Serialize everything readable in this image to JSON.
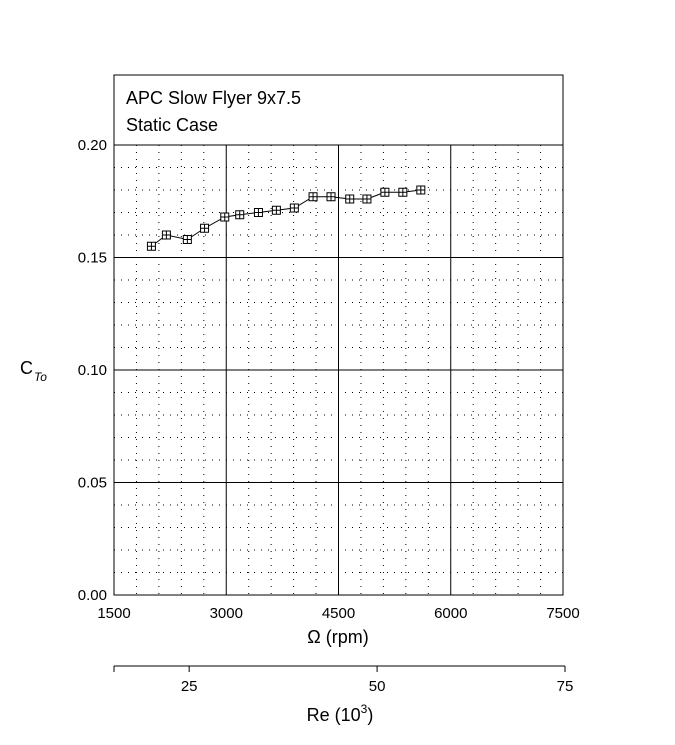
{
  "chart_data": {
    "type": "line",
    "title_lines": [
      "APC Slow Flyer 9x7.5",
      "Static Case"
    ],
    "xlabel": "Ω (rpm)",
    "ylabel_main": "C",
    "ylabel_sub": "To",
    "xlim": [
      1500,
      7500
    ],
    "ylim": [
      0.0,
      0.2
    ],
    "xticks": [
      1500,
      3000,
      4500,
      6000,
      7500
    ],
    "xtick_labels": [
      "1500",
      "3000",
      "4500",
      "6000",
      "7500"
    ],
    "yticks": [
      0.0,
      0.05,
      0.1,
      0.15,
      0.2
    ],
    "ytick_labels": [
      "0.00",
      "0.05",
      "0.10",
      "0.15",
      "0.20"
    ],
    "grid": true,
    "marker": "square-plus",
    "series": [
      {
        "x": [
          2000,
          2200,
          2480,
          2710,
          2980,
          3180,
          3430,
          3670,
          3910,
          4160,
          4400,
          4650,
          4880,
          5120,
          5360,
          5600
        ],
        "y": [
          0.155,
          0.16,
          0.158,
          0.163,
          0.168,
          0.169,
          0.17,
          0.171,
          0.172,
          0.177,
          0.177,
          0.176,
          0.176,
          0.179,
          0.179,
          0.18
        ]
      }
    ],
    "secondary_axis": {
      "label_main": "Re (10",
      "label_sup": "3",
      "label_close": ")",
      "xlim": [
        15,
        75
      ],
      "ticks": [
        25,
        50,
        75
      ],
      "tick_labels": [
        "25",
        "50",
        "75"
      ]
    }
  }
}
